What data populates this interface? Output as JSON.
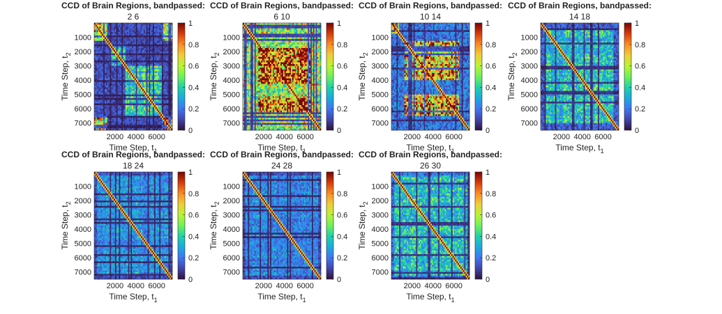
{
  "figure": {
    "colormap": "turbo",
    "background": "#ffffff"
  },
  "chart_data": [
    {
      "type": "heatmap",
      "title": "CCD of Brain Regions, bandpassed:",
      "subtitle": "2  6",
      "xlabel": "Time Step, t",
      "xlabel_sub": "1",
      "ylabel": "Time Step, t",
      "ylabel_sub": "2",
      "xlim": [
        0,
        7500
      ],
      "ylim": [
        0,
        7500
      ],
      "xticks": [
        2000,
        4000,
        6000
      ],
      "yticks": [
        1000,
        2000,
        3000,
        4000,
        5000,
        6000,
        7000
      ],
      "colorbar": {
        "ticks": [
          "0",
          "0.2",
          "0.4",
          "0.6",
          "0.8",
          "1"
        ],
        "range": [
          0,
          1
        ]
      },
      "diagonal": 1,
      "blocks": [
        {
          "x": [
            0,
            1200
          ],
          "y": [
            0,
            1200
          ],
          "value": 0.55
        },
        {
          "x": [
            1500,
            3000
          ],
          "y": [
            1500,
            3000
          ],
          "value": 0.3
        },
        {
          "x": [
            3000,
            6500
          ],
          "y": [
            3000,
            6500
          ],
          "value": 0.35
        },
        {
          "x": [
            6500,
            7500
          ],
          "y": [
            6500,
            7500
          ],
          "value": 0.7
        },
        {
          "x": [
            0,
            1200
          ],
          "y": [
            6500,
            7500
          ],
          "value": 0.65
        },
        {
          "x": [
            6500,
            7500
          ],
          "y": [
            0,
            1200
          ],
          "value": 0.55
        }
      ],
      "base_level": 0.12
    },
    {
      "type": "heatmap",
      "title": "CCD of Brain Regions, bandpassed:",
      "subtitle": "6  10",
      "xlabel": "Time Step, t",
      "xlabel_sub": "1",
      "ylabel": "Time Step, t",
      "ylabel_sub": "2",
      "xlim": [
        0,
        7500
      ],
      "ylim": [
        0,
        7500
      ],
      "xticks": [
        2000,
        4000,
        6000
      ],
      "yticks": [
        1000,
        2000,
        3000,
        4000,
        5000,
        6000,
        7000
      ],
      "colorbar": {
        "ticks": [
          "0",
          "0.2",
          "0.4",
          "0.6",
          "0.8",
          "1"
        ],
        "range": [
          0,
          1
        ]
      },
      "diagonal": 1,
      "blocks": [
        {
          "x": [
            0,
            7500
          ],
          "y": [
            0,
            7500
          ],
          "value": 0.45
        },
        {
          "x": [
            1500,
            6500
          ],
          "y": [
            1800,
            4200
          ],
          "value": 0.75
        },
        {
          "x": [
            1500,
            6500
          ],
          "y": [
            5000,
            6200
          ],
          "value": 0.7
        }
      ],
      "base_level": 0.25
    },
    {
      "type": "heatmap",
      "title": "CCD of Brain Regions, bandpassed:",
      "subtitle": "10  14",
      "xlabel": "Time Step, t",
      "xlabel_sub": "1",
      "ylabel": "Time Step, t",
      "ylabel_sub": "2",
      "xlim": [
        0,
        7500
      ],
      "ylim": [
        0,
        7500
      ],
      "xticks": [
        2000,
        4000,
        6000
      ],
      "yticks": [
        1000,
        2000,
        3000,
        4000,
        5000,
        6000,
        7000
      ],
      "colorbar": {
        "ticks": [
          "0",
          "0.2",
          "0.4",
          "0.6",
          "0.8",
          "1"
        ],
        "range": [
          0,
          1
        ]
      },
      "diagonal": 1,
      "blocks": [
        {
          "x": [
            1200,
            6500
          ],
          "y": [
            1200,
            4000
          ],
          "value": 0.6
        },
        {
          "x": [
            1200,
            6500
          ],
          "y": [
            5000,
            6500
          ],
          "value": 0.62
        },
        {
          "x": [
            0,
            800
          ],
          "y": [
            0,
            800
          ],
          "value": 0.6
        }
      ],
      "base_level": 0.2
    },
    {
      "type": "heatmap",
      "title": "CCD of Brain Regions, bandpassed:",
      "subtitle": "14  18",
      "xlabel": "Time Step, t",
      "xlabel_sub": "1",
      "ylabel": "Time Step, t",
      "ylabel_sub": "2",
      "xlim": [
        0,
        7500
      ],
      "ylim": [
        0,
        7500
      ],
      "xticks": [
        2000,
        4000,
        6000
      ],
      "yticks": [
        1000,
        2000,
        3000,
        4000,
        5000,
        6000,
        7000
      ],
      "colorbar": {
        "ticks": [
          "0",
          "0.2",
          "0.4",
          "0.6",
          "0.8",
          "1"
        ],
        "range": [
          0,
          1
        ]
      },
      "diagonal": 1,
      "blocks": [
        {
          "x": [
            500,
            7000
          ],
          "y": [
            500,
            7000
          ],
          "value": 0.3
        }
      ],
      "base_level": 0.15
    },
    {
      "type": "heatmap",
      "title": "CCD of Brain Regions, bandpassed:",
      "subtitle": "18  24",
      "xlabel": "Time Step, t",
      "xlabel_sub": "1",
      "ylabel": "Time Step, t",
      "ylabel_sub": "2",
      "xlim": [
        0,
        7500
      ],
      "ylim": [
        0,
        7500
      ],
      "xticks": [
        2000,
        4000,
        6000
      ],
      "yticks": [
        1000,
        2000,
        3000,
        4000,
        5000,
        6000,
        7000
      ],
      "colorbar": {
        "ticks": [
          "0",
          "0.2",
          "0.4",
          "0.6",
          "0.8",
          "1"
        ],
        "range": [
          0,
          1
        ]
      },
      "diagonal": 1,
      "blocks": [
        {
          "x": [
            300,
            7200
          ],
          "y": [
            300,
            7200
          ],
          "value": 0.22
        }
      ],
      "base_level": 0.12
    },
    {
      "type": "heatmap",
      "title": "CCD of Brain Regions, bandpassed:",
      "subtitle": "24  28",
      "xlabel": "Time Step, t",
      "xlabel_sub": "1",
      "ylabel": "Time Step, t",
      "ylabel_sub": "2",
      "xlim": [
        0,
        7500
      ],
      "ylim": [
        0,
        7500
      ],
      "xticks": [
        2000,
        4000,
        6000
      ],
      "yticks": [
        1000,
        2000,
        3000,
        4000,
        5000,
        6000,
        7000
      ],
      "colorbar": {
        "ticks": [
          "0",
          "0.2",
          "0.4",
          "0.6",
          "0.8",
          "1"
        ],
        "range": [
          0,
          1
        ]
      },
      "diagonal": 1,
      "blocks": [
        {
          "x": [
            300,
            7200
          ],
          "y": [
            300,
            7200
          ],
          "value": 0.2
        }
      ],
      "base_level": 0.12
    },
    {
      "type": "heatmap",
      "title": "CCD of Brain Regions, bandpassed:",
      "subtitle": "26  30",
      "xlabel": "Time Step, t",
      "xlabel_sub": "1",
      "ylabel": "Time Step, t",
      "ylabel_sub": "2",
      "xlim": [
        0,
        7500
      ],
      "ylim": [
        0,
        7500
      ],
      "xticks": [
        2000,
        4000,
        6000
      ],
      "yticks": [
        1000,
        2000,
        3000,
        4000,
        5000,
        6000,
        7000
      ],
      "colorbar": {
        "ticks": [
          "0",
          "0.2",
          "0.4",
          "0.6",
          "0.8",
          "1"
        ],
        "range": [
          0,
          1
        ]
      },
      "diagonal": 1,
      "blocks": [
        {
          "x": [
            300,
            7200
          ],
          "y": [
            300,
            7200
          ],
          "value": 0.3
        }
      ],
      "base_level": 0.18
    }
  ]
}
